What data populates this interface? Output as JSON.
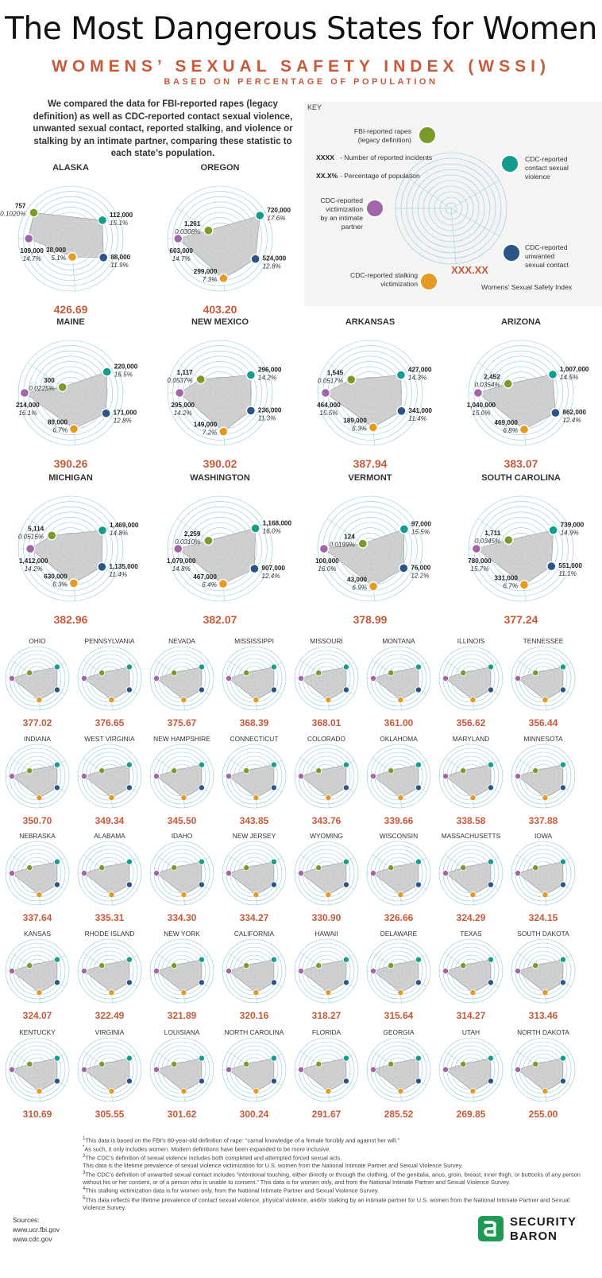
{
  "header": {
    "title": "The Most Dangerous States for Women",
    "subtitle": "WOMENS’ SEXUAL SAFETY INDEX (WSSI)",
    "subtitle2": "BASED ON PERCENTAGE OF POPULATION",
    "intro": "We compared the data for FBI-reported rapes (legacy definition) as well as CDC-reported contact sexual violence, unwanted sexual contact, reported stalking, and violence or stalking by an intimate partner, comparing these statistic to each state’s population."
  },
  "key": {
    "label": "KEY",
    "fbi": "FBI-reported rapes (legacy definition)",
    "fbi_note": "1",
    "contact": "CDC-reported contact sexual violence",
    "contact_note": "2",
    "unwanted": "CDC-reported unwanted sexual contact",
    "unwanted_note": "3",
    "stalking": "CDC-reported stalking victimization",
    "stalking_note": "4",
    "partner": "CDC-reported victimization by an intimate partner",
    "partner_note": "5",
    "xxxx": "XXXX",
    "xxxx_desc": "- Number of reported incidents",
    "xxpct": "XX.X%",
    "xxpct_desc": "- Percentage of population",
    "index_value": "XXX.XX",
    "index_label": "Womens’ Sexual Safety Index"
  },
  "colors": {
    "fbi": "#7a9a2a",
    "contact": "#149d8f",
    "unwanted": "#2b5586",
    "stalking": "#e59a24",
    "partner": "#a066a8",
    "score": "#c85a3c",
    "grid": "#8fc8dc",
    "poly": "#c8c8c8"
  },
  "chart_data": {
    "type": "radar",
    "axes": [
      "FBI-reported rapes",
      "CDC-reported contact sexual violence",
      "CDC-reported unwanted sexual contact",
      "CDC-reported stalking victimization",
      "CDC-reported victimization by an intimate partner"
    ],
    "detailed": [
      {
        "state": "ALASKA",
        "score": "426.69",
        "fbi": "757",
        "fbi_pct": "0.1020%",
        "contact": "112,000",
        "contact_pct": "15.1%",
        "unwanted": "88,000",
        "unwanted_pct": "11.9%",
        "stalking": "38,000",
        "stalking_pct": "5.1%",
        "partner": "109,000",
        "partner_pct": "14.7%",
        "r": [
          0.86,
          0.7,
          0.72,
          0.35,
          0.8
        ]
      },
      {
        "state": "OREGON",
        "score": "403.20",
        "fbi": "1,261",
        "fbi_pct": "0.0308%",
        "contact": "720,000",
        "contact_pct": "17.6%",
        "unwanted": "524,000",
        "unwanted_pct": "12.8%",
        "stalking": "299,000",
        "stalking_pct": "7.3%",
        "partner": "603,000",
        "partner_pct": "14.7%",
        "r": [
          0.27,
          0.88,
          0.78,
          0.76,
          0.8
        ]
      },
      {
        "state": "MAINE",
        "score": "390.26",
        "fbi": "300",
        "fbi_pct": "0.0225%",
        "contact": "220,000",
        "contact_pct": "16.5%",
        "unwanted": "171,000",
        "unwanted_pct": "12.8%",
        "stalking": "89,000",
        "stalking_pct": "6.7%",
        "partner": "214,000",
        "partner_pct": "16.1%",
        "r": [
          0.19,
          0.8,
          0.78,
          0.69,
          0.88
        ]
      },
      {
        "state": "NEW MEXICO",
        "score": "390.02",
        "fbi": "1,117",
        "fbi_pct": "0.0537%",
        "contact": "296,000",
        "contact_pct": "14.2%",
        "unwanted": "236,000",
        "unwanted_pct": "11.3%",
        "stalking": "149,000",
        "stalking_pct": "7.2%",
        "partner": "295,000",
        "partner_pct": "14.2%",
        "r": [
          0.45,
          0.68,
          0.68,
          0.74,
          0.77
        ]
      },
      {
        "state": "ARKANSAS",
        "score": "387.94",
        "fbi": "1,545",
        "fbi_pct": "0.0517%",
        "contact": "427,000",
        "contact_pct": "14.3%",
        "unwanted": "341,000",
        "unwanted_pct": "11.4%",
        "stalking": "189,000",
        "stalking_pct": "6.3%",
        "partner": "464,000",
        "partner_pct": "15.5%",
        "r": [
          0.44,
          0.68,
          0.69,
          0.66,
          0.85
        ]
      },
      {
        "state": "ARIZONA",
        "score": "383.07",
        "fbi": "2,452",
        "fbi_pct": "0.0354%",
        "contact": "1,007,000",
        "contact_pct": "14.5%",
        "unwanted": "862,000",
        "unwanted_pct": "12.4%",
        "stalking": "469,000",
        "stalking_pct": "6.8%",
        "partner": "1,040,000",
        "partner_pct": "15.0%",
        "r": [
          0.3,
          0.7,
          0.76,
          0.7,
          0.82
        ]
      },
      {
        "state": "MICHIGAN",
        "score": "382.96",
        "fbi": "5,114",
        "fbi_pct": "0.0515%",
        "contact": "1,469,000",
        "contact_pct": "14.8%",
        "unwanted": "1,135,000",
        "unwanted_pct": "11.4%",
        "stalking": "630,000",
        "stalking_pct": "6.3%",
        "partner": "1,412,000",
        "partner_pct": "14.2%",
        "r": [
          0.44,
          0.7,
          0.69,
          0.66,
          0.77
        ]
      },
      {
        "state": "WASHINGTON",
        "score": "382.07",
        "fbi": "2,259",
        "fbi_pct": "0.0310%",
        "contact": "1,168,000",
        "contact_pct": "16.0%",
        "unwanted": "907,000",
        "unwanted_pct": "12.4%",
        "stalking": "467,000",
        "stalking_pct": "6.4%",
        "partner": "1,079,000",
        "partner_pct": "14.8%",
        "r": [
          0.27,
          0.78,
          0.76,
          0.67,
          0.8
        ]
      },
      {
        "state": "VERMONT",
        "score": "378.99",
        "fbi": "124",
        "fbi_pct": "0.0199%",
        "contact": "97,000",
        "contact_pct": "15.5%",
        "unwanted": "76,000",
        "unwanted_pct": "12.2%",
        "stalking": "43,000",
        "stalking_pct": "6.9%",
        "partner": "100,000",
        "partner_pct": "16.0%",
        "r": [
          0.17,
          0.75,
          0.74,
          0.72,
          0.88
        ]
      },
      {
        "state": "SOUTH CAROLINA",
        "score": "377.24",
        "fbi": "1,711",
        "fbi_pct": "0.0345%",
        "contact": "739,000",
        "contact_pct": "14.9%",
        "unwanted": "551,000",
        "unwanted_pct": "11.1%",
        "stalking": "331,000",
        "stalking_pct": "6.7%",
        "partner": "780,000",
        "partner_pct": "15.7%",
        "r": [
          0.29,
          0.71,
          0.67,
          0.69,
          0.85
        ]
      }
    ],
    "small": [
      {
        "state": "OHIO",
        "score": "377.02"
      },
      {
        "state": "PENNSYLVANIA",
        "score": "376.65"
      },
      {
        "state": "NEVADA",
        "score": "375.67"
      },
      {
        "state": "MISSISSIPPI",
        "score": "368.39"
      },
      {
        "state": "MISSOURI",
        "score": "368.01"
      },
      {
        "state": "MONTANA",
        "score": "361.00"
      },
      {
        "state": "ILLINOIS",
        "score": "356.62"
      },
      {
        "state": "TENNESSEE",
        "score": "356.44"
      },
      {
        "state": "INDIANA",
        "score": "350.70"
      },
      {
        "state": "WEST VIRGINIA",
        "score": "349.34"
      },
      {
        "state": "NEW HAMPSHIRE",
        "score": "345.50"
      },
      {
        "state": "CONNECTICUT",
        "score": "343.85"
      },
      {
        "state": "COLORADO",
        "score": "343.76"
      },
      {
        "state": "OKLAHOMA",
        "score": "339.66"
      },
      {
        "state": "MARYLAND",
        "score": "338.58"
      },
      {
        "state": "MINNESOTA",
        "score": "337.88"
      },
      {
        "state": "NEBRASKA",
        "score": "337.64"
      },
      {
        "state": "ALABAMA",
        "score": "335.31"
      },
      {
        "state": "IDAHO",
        "score": "334.30"
      },
      {
        "state": "NEW JERSEY",
        "score": "334.27"
      },
      {
        "state": "WYOMING",
        "score": "330.90"
      },
      {
        "state": "WISCONSIN",
        "score": "326.66"
      },
      {
        "state": "MASSACHUSETTS",
        "score": "324.29"
      },
      {
        "state": "IOWA",
        "score": "324.15"
      },
      {
        "state": "KANSAS",
        "score": "324.07"
      },
      {
        "state": "RHODE ISLAND",
        "score": "322.49"
      },
      {
        "state": "NEW YORK",
        "score": "321.89"
      },
      {
        "state": "CALIFORNIA",
        "score": "320.16"
      },
      {
        "state": "HAWAII",
        "score": "318.27"
      },
      {
        "state": "DELAWARE",
        "score": "315.64"
      },
      {
        "state": "TEXAS",
        "score": "314.27"
      },
      {
        "state": "SOUTH DAKOTA",
        "score": "313.46"
      },
      {
        "state": "KENTUCKY",
        "score": "310.69"
      },
      {
        "state": "VIRGINIA",
        "score": "305.55"
      },
      {
        "state": "LOUISIANA",
        "score": "301.62"
      },
      {
        "state": "NORTH CAROLINA",
        "score": "300.24"
      },
      {
        "state": "FLORIDA",
        "score": "291.67"
      },
      {
        "state": "GEORGIA",
        "score": "285.52"
      },
      {
        "state": "UTAH",
        "score": "269.85"
      },
      {
        "state": "NORTH DAKOTA",
        "score": "255.00"
      }
    ]
  },
  "footnotes": [
    {
      "n": "1",
      "text": "This data is based on the FBI’s 80-year-old definition of rape: “carnal knowledge of a female forcibly and against her will.”"
    },
    {
      "n": "*",
      "text": "As such, it only includes women. Modern definitions have been expanded to be more inclusive."
    },
    {
      "n": "2",
      "text": "The CDC’s definition of sexual violence includes both completed and attempted forced sexual acts."
    },
    {
      "n": "",
      "text": "This data is the lifetime prevalence of sexual violence victimization for U.S. women from the National Intimate Partner and Sexual Violence Survey."
    },
    {
      "n": "3",
      "text": "The CDC’s definition of unwanted sexual contact includes “intentional touching, either directly or through the clothing, of the genitalia, anus, groin, breast, inner thigh, or buttocks of any person without his or her consent, or of a person who is unable to consent.” This data is for women only, and from the National Intimate Partner and Sexual Violence Survey."
    },
    {
      "n": "4",
      "text": "This stalking victimization data is for women only, from the National Intimate Partner and Sexual Violence Survey."
    },
    {
      "n": "5",
      "text": "This data reflects the lifetime prevalence of contact sexual violence, physical violence, and/or stalking by an intimate partner for U.S. women from the National Intimate Partner and Sexual Violence Survey."
    }
  ],
  "sources": {
    "label": "Sources:",
    "items": [
      "www.ucr.fbi.gov",
      "www.cdc.gov"
    ]
  },
  "brand": {
    "line1": "SECURITY",
    "line2": "BARON",
    "color": "#1f9a55"
  }
}
